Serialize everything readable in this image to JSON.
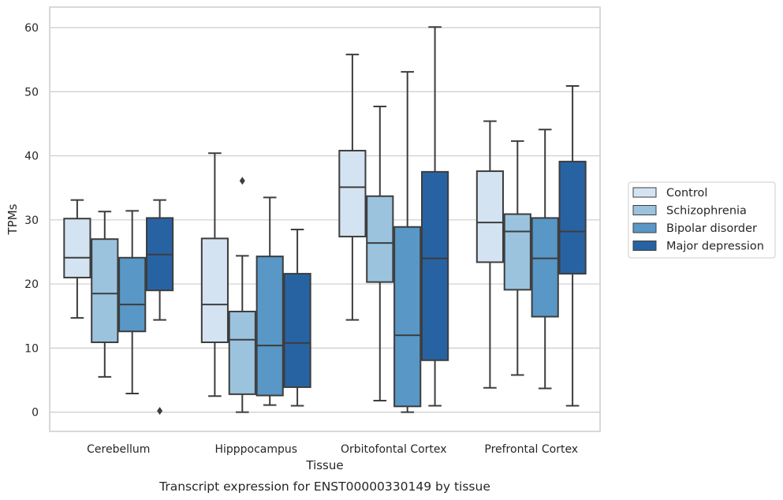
{
  "chart_data": {
    "type": "box",
    "caption": "Transcript expression for ENST00000330149 by tissue",
    "xlabel": "Tissue",
    "ylabel": "TPMs",
    "ylim": [
      -3,
      63.2
    ],
    "yticks": [
      0,
      10,
      20,
      30,
      40,
      50,
      60
    ],
    "grid": true,
    "legend_position": "right",
    "categories": [
      "Cerebellum",
      "Hipppocampus",
      "Orbitofontal Cortex",
      "Prefrontal Cortex"
    ],
    "series": [
      {
        "name": "Control",
        "color": "#d4e3f2",
        "boxes": [
          {
            "whisker_low": 14.7,
            "q1": 21.0,
            "median": 24.1,
            "q3": 30.2,
            "whisker_high": 33.1,
            "outliers": []
          },
          {
            "whisker_low": 2.5,
            "q1": 10.9,
            "median": 16.8,
            "q3": 27.1,
            "whisker_high": 40.4,
            "outliers": []
          },
          {
            "whisker_low": 14.4,
            "q1": 27.4,
            "median": 35.1,
            "q3": 40.8,
            "whisker_high": 55.8,
            "outliers": []
          },
          {
            "whisker_low": 3.8,
            "q1": 23.4,
            "median": 29.6,
            "q3": 37.6,
            "whisker_high": 45.4,
            "outliers": []
          }
        ]
      },
      {
        "name": "Schizophrenia",
        "color": "#9bc3de",
        "boxes": [
          {
            "whisker_low": 5.5,
            "q1": 10.9,
            "median": 18.5,
            "q3": 27.0,
            "whisker_high": 31.3,
            "outliers": []
          },
          {
            "whisker_low": 0.0,
            "q1": 2.8,
            "median": 11.3,
            "q3": 15.7,
            "whisker_high": 24.4,
            "outliers": [
              36.1
            ]
          },
          {
            "whisker_low": 1.8,
            "q1": 20.3,
            "median": 26.4,
            "q3": 33.7,
            "whisker_high": 47.7,
            "outliers": []
          },
          {
            "whisker_low": 5.8,
            "q1": 19.1,
            "median": 28.2,
            "q3": 30.9,
            "whisker_high": 42.3,
            "outliers": []
          }
        ]
      },
      {
        "name": "Bipolar disorder",
        "color": "#5897c6",
        "boxes": [
          {
            "whisker_low": 2.9,
            "q1": 12.6,
            "median": 16.8,
            "q3": 24.1,
            "whisker_high": 31.4,
            "outliers": []
          },
          {
            "whisker_low": 1.1,
            "q1": 2.6,
            "median": 10.4,
            "q3": 24.3,
            "whisker_high": 33.5,
            "outliers": []
          },
          {
            "whisker_low": 0.0,
            "q1": 0.9,
            "median": 12.0,
            "q3": 28.9,
            "whisker_high": 53.1,
            "outliers": []
          },
          {
            "whisker_low": 3.7,
            "q1": 14.9,
            "median": 24.0,
            "q3": 30.3,
            "whisker_high": 44.1,
            "outliers": []
          }
        ]
      },
      {
        "name": "Major depression",
        "color": "#2763a3",
        "boxes": [
          {
            "whisker_low": 14.4,
            "q1": 19.0,
            "median": 24.6,
            "q3": 30.3,
            "whisker_high": 33.1,
            "outliers": [
              0.2
            ]
          },
          {
            "whisker_low": 1.0,
            "q1": 3.9,
            "median": 10.8,
            "q3": 21.6,
            "whisker_high": 28.5,
            "outliers": []
          },
          {
            "whisker_low": 1.0,
            "q1": 8.1,
            "median": 24.0,
            "q3": 37.5,
            "whisker_high": 60.1,
            "outliers": []
          },
          {
            "whisker_low": 1.0,
            "q1": 21.6,
            "median": 28.2,
            "q3": 39.1,
            "whisker_high": 50.9,
            "outliers": []
          }
        ]
      }
    ]
  }
}
